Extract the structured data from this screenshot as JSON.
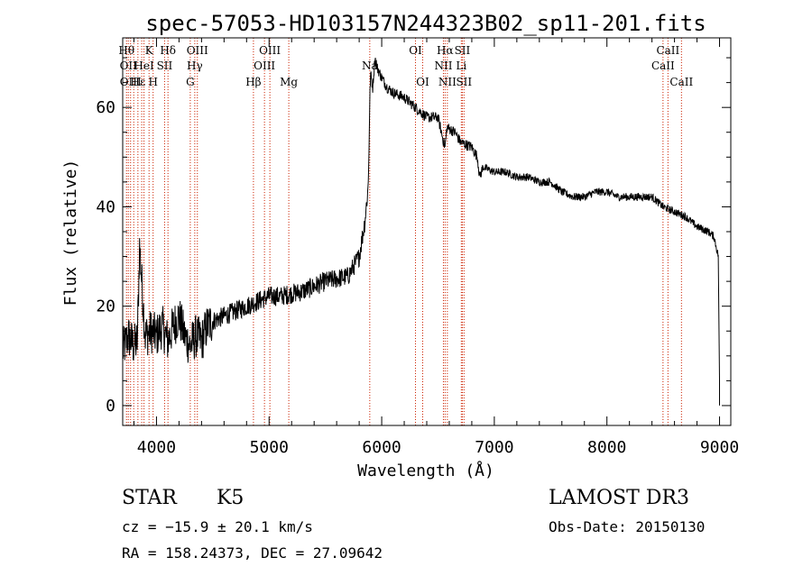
{
  "chart_data": {
    "type": "line",
    "title": "spec-57053-HD103157N244323B02_sp11-201.fits",
    "xlabel": "Wavelength (Å)",
    "ylabel": "Flux (relative)",
    "xlim": [
      3700,
      9100
    ],
    "ylim": [
      -4,
      74
    ],
    "xticks": [
      4000,
      5000,
      6000,
      7000,
      8000,
      9000
    ],
    "yticks": [
      0,
      20,
      40,
      60
    ],
    "spectrum_knots": {
      "x": [
        3700,
        3750,
        3800,
        3830,
        3850,
        3900,
        3950,
        4000,
        4050,
        4100,
        4150,
        4200,
        4250,
        4300,
        4350,
        4400,
        4450,
        4500,
        4600,
        4700,
        4800,
        4900,
        5000,
        5100,
        5200,
        5300,
        5400,
        5500,
        5600,
        5700,
        5800,
        5850,
        5880,
        5900,
        5920,
        5940,
        5960,
        6000,
        6050,
        6100,
        6200,
        6300,
        6400,
        6500,
        6540,
        6562,
        6580,
        6650,
        6700,
        6800,
        6850,
        6870,
        6900,
        7000,
        7100,
        7200,
        7300,
        7400,
        7500,
        7600,
        7700,
        7800,
        7900,
        8000,
        8100,
        8200,
        8300,
        8400,
        8500,
        8600,
        8700,
        8800,
        8900,
        8950,
        8990,
        9000
      ],
      "y": [
        11,
        14,
        12,
        13,
        32,
        14,
        15,
        14,
        16,
        13,
        16,
        18,
        14,
        12,
        14,
        13,
        16,
        17,
        18,
        19,
        20,
        21,
        22,
        22,
        22.5,
        23,
        24,
        25,
        25.5,
        26,
        30,
        37,
        44,
        67,
        64,
        70,
        68,
        66,
        64,
        63,
        62,
        60,
        58,
        58,
        54,
        52,
        56,
        55,
        53,
        52,
        50,
        46,
        48,
        47,
        47,
        46,
        46,
        45,
        45,
        43,
        42,
        42,
        43,
        43,
        42,
        42,
        42,
        42,
        40,
        39,
        38,
        36,
        35,
        34,
        30,
        5
      ]
    },
    "line_markers": [
      {
        "x": 3734,
        "label": "Hθ",
        "row": 0
      },
      {
        "x": 3750,
        "label": "OII",
        "row": 1
      },
      {
        "x": 3770,
        "label": "OIII",
        "row": 2
      },
      {
        "x": 3798,
        "label": "",
        "row": 0
      },
      {
        "x": 3835,
        "label": "Hε",
        "row": 2
      },
      {
        "x": 3869,
        "label": "",
        "row": 0
      },
      {
        "x": 3889,
        "label": "HeI",
        "row": 1
      },
      {
        "x": 3934,
        "label": "K",
        "row": 0
      },
      {
        "x": 3970,
        "label": "H",
        "row": 2
      },
      {
        "x": 4072,
        "label": "SII",
        "row": 1
      },
      {
        "x": 4102,
        "label": "Hδ",
        "row": 0
      },
      {
        "x": 4300,
        "label": "G",
        "row": 2
      },
      {
        "x": 4340,
        "label": "Hγ",
        "row": 1
      },
      {
        "x": 4363,
        "label": "OIII",
        "row": 0
      },
      {
        "x": 4861,
        "label": "Hβ",
        "row": 2
      },
      {
        "x": 4959,
        "label": "OIII",
        "row": 1
      },
      {
        "x": 5007,
        "label": "OIII",
        "row": 0
      },
      {
        "x": 5175,
        "label": "Mg",
        "row": 2
      },
      {
        "x": 5894,
        "label": "Na",
        "row": 1
      },
      {
        "x": 6300,
        "label": "OI",
        "row": 0
      },
      {
        "x": 6364,
        "label": "OI",
        "row": 2
      },
      {
        "x": 6548,
        "label": "NII",
        "row": 1
      },
      {
        "x": 6563,
        "label": "Hα",
        "row": 0
      },
      {
        "x": 6583,
        "label": "NII",
        "row": 2
      },
      {
        "x": 6707,
        "label": "Li",
        "row": 1
      },
      {
        "x": 6716,
        "label": "SII",
        "row": 0
      },
      {
        "x": 6731,
        "label": "SII",
        "row": 2
      },
      {
        "x": 8498,
        "label": "CaII",
        "row": 1
      },
      {
        "x": 8542,
        "label": "CaII",
        "row": 0
      },
      {
        "x": 8662,
        "label": "CaII",
        "row": 2
      }
    ]
  },
  "info": {
    "object_class": "STAR",
    "subclass": "K5",
    "survey": "LAMOST DR3",
    "redshift_text": "cz = −15.9 ± 20.1 km/s",
    "obs_date_text": "Obs-Date: 20150130",
    "coords_text": "RA = 158.24373, DEC =  27.09642"
  },
  "colors": {
    "spectrum": "#000000",
    "marker_line": "#cc2200",
    "axes": "#000000",
    "background": "#ffffff"
  }
}
